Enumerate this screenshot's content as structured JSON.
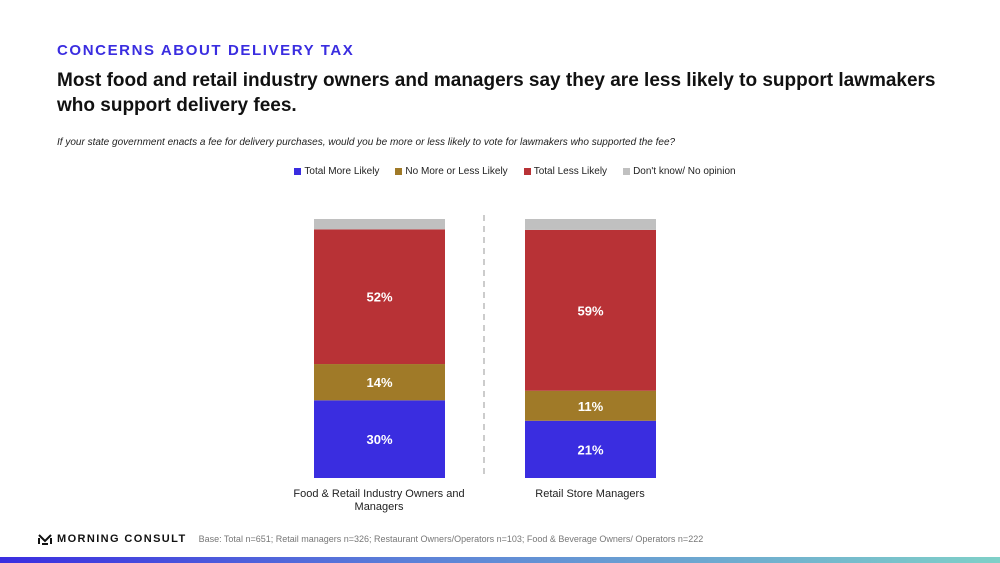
{
  "kicker": "CONCERNS ABOUT DELIVERY TAX",
  "headline": "Most food and retail industry owners and managers say they are less likely to support lawmakers who support delivery fees.",
  "question": "If your state government enacts a fee for delivery purchases, would you be more or less likely to vote for lawmakers who supported the fee?",
  "footer": {
    "logo": "MORNING CONSULT",
    "base": "Base: Total n=651; Retail managers n=326; Restaurant Owners/Operators n=103; Food & Beverage Owners/ Operators n=222"
  },
  "chart_data": {
    "type": "bar",
    "stacked": true,
    "legend_position": "top",
    "categories": [
      "Food & Retail Industry Owners and Managers",
      "Retail Store Managers"
    ],
    "series": [
      {
        "name": "Total More Likely",
        "color": "#3a2de0",
        "values": [
          30,
          21
        ],
        "labels": [
          "30%",
          "21%"
        ]
      },
      {
        "name": "No More or Less Likely",
        "color": "#a07a28",
        "values": [
          14,
          11
        ],
        "labels": [
          "14%",
          "11%"
        ]
      },
      {
        "name": "Total Less Likely",
        "color": "#b83236",
        "values": [
          52,
          59
        ],
        "labels": [
          "52%",
          "59%"
        ]
      },
      {
        "name": "Don't know/ No opinion",
        "color": "#c0c0c0",
        "values": [
          4,
          4
        ],
        "labels": [
          "",
          ""
        ]
      }
    ]
  }
}
